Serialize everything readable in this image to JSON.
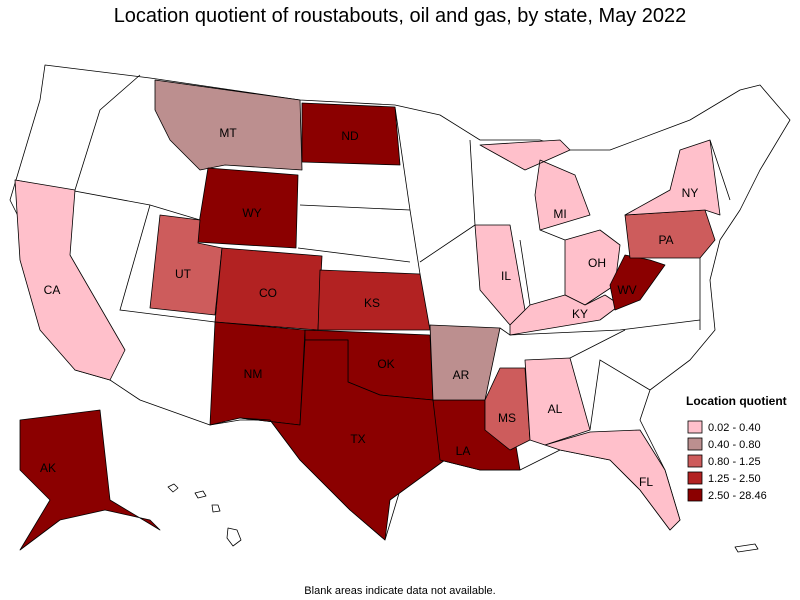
{
  "title": "Location quotient of roustabouts, oil and gas, by state, May 2022",
  "legend": {
    "title": "Location quotient",
    "items": [
      {
        "label": "0.02 - 0.40",
        "color": "#ffc0cb"
      },
      {
        "label": "0.40 - 0.80",
        "color": "#bc8f8f"
      },
      {
        "label": "0.80 - 1.25",
        "color": "#cd5c5c"
      },
      {
        "label": "1.25 - 2.50",
        "color": "#b22222"
      },
      {
        "label": "2.50 - 28.46",
        "color": "#8b0000"
      }
    ]
  },
  "states": [
    {
      "label": "MT",
      "color": "#bc8f8f"
    },
    {
      "label": "ND",
      "color": "#8b0000"
    },
    {
      "label": "WY",
      "color": "#8b0000"
    },
    {
      "label": "UT",
      "color": "#cd5c5c"
    },
    {
      "label": "CO",
      "color": "#b22222"
    },
    {
      "label": "KS",
      "color": "#b22222"
    },
    {
      "label": "NM",
      "color": "#8b0000"
    },
    {
      "label": "OK",
      "color": "#8b0000"
    },
    {
      "label": "TX",
      "color": "#8b0000"
    },
    {
      "label": "LA",
      "color": "#8b0000"
    },
    {
      "label": "AR",
      "color": "#bc8f8f"
    },
    {
      "label": "MS",
      "color": "#cd5c5c"
    },
    {
      "label": "AL",
      "color": "#ffc0cb"
    },
    {
      "label": "FL",
      "color": "#ffc0cb"
    },
    {
      "label": "IL",
      "color": "#ffc0cb"
    },
    {
      "label": "MI",
      "color": "#ffc0cb"
    },
    {
      "label": "OH",
      "color": "#ffc0cb"
    },
    {
      "label": "KY",
      "color": "#ffc0cb"
    },
    {
      "label": "WV",
      "color": "#8b0000"
    },
    {
      "label": "PA",
      "color": "#cd5c5c"
    },
    {
      "label": "NY",
      "color": "#ffc0cb"
    },
    {
      "label": "CA",
      "color": "#ffc0cb"
    },
    {
      "label": "AK",
      "color": "#8b0000"
    }
  ],
  "note": "Blank areas indicate data not available."
}
